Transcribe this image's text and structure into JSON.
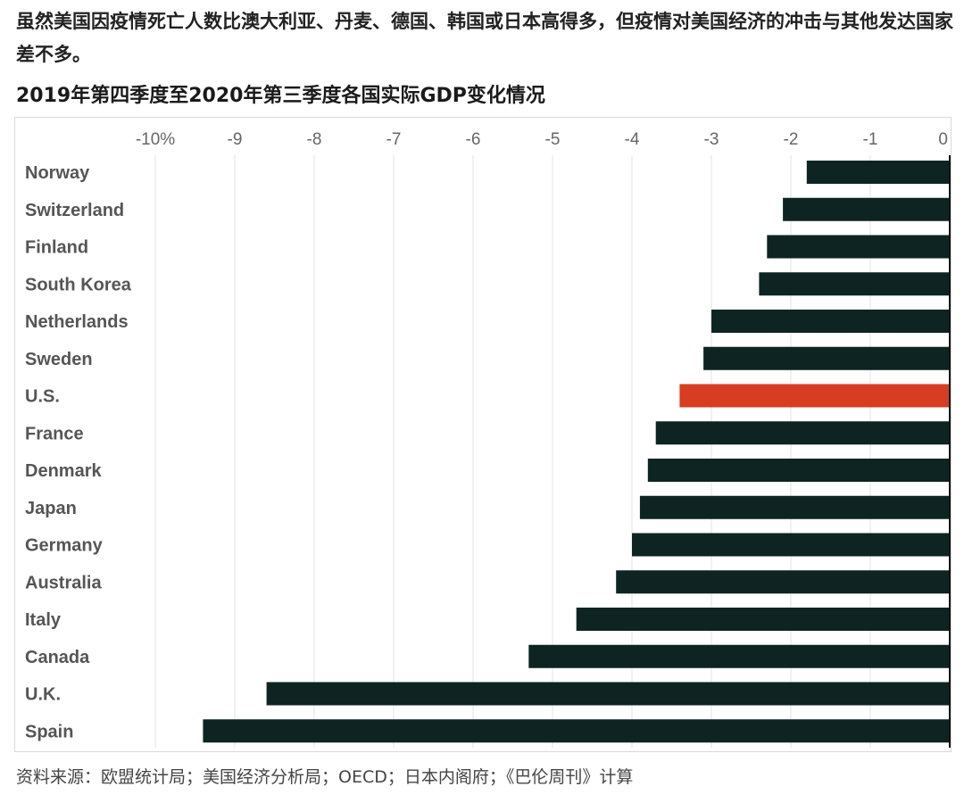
{
  "article": {
    "intro": "虽然美国因疫情死亡人数比澳大利亚、丹麦、德国、韩国或日本高得多，但疫情对美国经济的冲击与其他发达国家差不多。",
    "source": "资料来源：欧盟统计局；美国经济分析局；OECD；日本内阁府；《巴伦周刊》计算"
  },
  "chart_data": {
    "type": "bar",
    "orientation": "horizontal",
    "title": "2019年第四季度至2020年第三季度各国实际GDP变化情况",
    "xlabel": "",
    "ylabel": "",
    "xlim": [
      -10,
      0
    ],
    "ticks": [
      -10,
      -9,
      -8,
      -7,
      -6,
      -5,
      -4,
      -3,
      -2,
      -1,
      0
    ],
    "tick_labels": [
      "-10%",
      "-9",
      "-8",
      "-7",
      "-6",
      "-5",
      "-4",
      "-3",
      "-2",
      "-1",
      "0"
    ],
    "grid": true,
    "categories": [
      "Norway",
      "Switzerland",
      "Finland",
      "South Korea",
      "Netherlands",
      "Sweden",
      "U.S.",
      "France",
      "Denmark",
      "Japan",
      "Germany",
      "Australia",
      "Italy",
      "Canada",
      "U.K.",
      "Spain"
    ],
    "values": [
      -1.8,
      -2.1,
      -2.3,
      -2.4,
      -3.0,
      -3.1,
      -3.4,
      -3.7,
      -3.8,
      -3.9,
      -4.0,
      -4.2,
      -4.7,
      -5.3,
      -8.6,
      -9.4
    ],
    "highlight": "U.S.",
    "colors": {
      "bar": "#0d2422",
      "highlight": "#d63d22",
      "grid": "#e3e3e3",
      "zero_line": "#111111"
    }
  }
}
